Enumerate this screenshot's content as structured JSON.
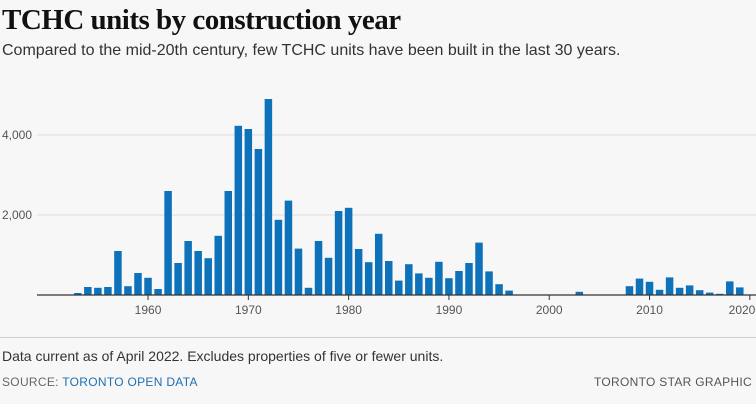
{
  "header": {
    "title": "TCHC units by construction year",
    "subtitle": "Compared to the mid-20th century, few TCHC units have been built in the last 30 years."
  },
  "footer": {
    "note": "Data current as of April 2022. Excludes properties of five or fewer units.",
    "source_label": "SOURCE: ",
    "source_link": "TORONTO OPEN DATA",
    "credit": "TORONTO STAR GRAPHIC"
  },
  "colors": {
    "bar": "#0d72b9",
    "grid": "#dddddd",
    "axis": "#333333"
  },
  "chart_data": {
    "type": "bar",
    "title": "TCHC units by construction year",
    "xlabel": "",
    "ylabel": "",
    "ylim": [
      0,
      5000
    ],
    "xlim": [
      1951,
      2020
    ],
    "yticks": [
      2000,
      4000
    ],
    "ytick_labels": [
      "2,000",
      "4,000"
    ],
    "xticks": [
      1960,
      1970,
      1980,
      1990,
      2000,
      2010,
      2020
    ],
    "grid": true,
    "legend": "none",
    "x": [
      1953,
      1954,
      1955,
      1956,
      1957,
      1958,
      1959,
      1960,
      1961,
      1962,
      1963,
      1964,
      1965,
      1966,
      1967,
      1968,
      1969,
      1970,
      1971,
      1972,
      1973,
      1974,
      1975,
      1976,
      1977,
      1978,
      1979,
      1980,
      1981,
      1982,
      1983,
      1984,
      1985,
      1986,
      1987,
      1988,
      1989,
      1990,
      1991,
      1992,
      1993,
      1994,
      1995,
      1996,
      2003,
      2008,
      2009,
      2010,
      2011,
      2012,
      2013,
      2014,
      2015,
      2016,
      2017,
      2018,
      2019
    ],
    "values": [
      50,
      200,
      180,
      200,
      1100,
      220,
      550,
      430,
      150,
      2600,
      800,
      1350,
      1100,
      920,
      1480,
      2600,
      4230,
      4150,
      3650,
      4900,
      1880,
      2360,
      1160,
      180,
      1350,
      930,
      2100,
      2180,
      1150,
      820,
      1530,
      850,
      360,
      770,
      540,
      430,
      830,
      420,
      600,
      800,
      1310,
      590,
      270,
      110,
      80,
      220,
      410,
      330,
      130,
      440,
      180,
      240,
      120,
      60,
      30,
      340,
      190
    ]
  }
}
